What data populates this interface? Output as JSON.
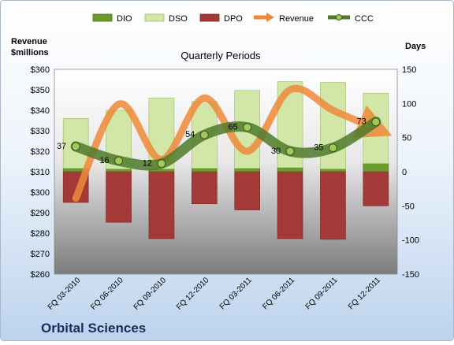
{
  "company": "Orbital Sciences",
  "chart_data": {
    "type": "bar",
    "title": "Quarterly Periods",
    "left_axis_label": [
      "Revenue",
      "$millions"
    ],
    "right_axis_label": "Days",
    "categories": [
      "FQ 03-2010",
      "FQ 06-2010",
      "FQ 09-2010",
      "FQ 12-2010",
      "FQ 03-2011",
      "FQ 06-2011",
      "FQ 09-2011",
      "FQ 12-2011"
    ],
    "left_axis": {
      "min": 260,
      "max": 360,
      "step": 10,
      "format": "$"
    },
    "right_axis": {
      "min": -150,
      "max": 150,
      "step": 50
    },
    "series": [
      {
        "name": "DIO",
        "axis": "right",
        "kind": "bar",
        "color": "#6a9a2a",
        "values": [
          5,
          4,
          4,
          5,
          5,
          6,
          4,
          12
        ]
      },
      {
        "name": "DSO",
        "axis": "right",
        "kind": "bar",
        "color": "#d2e6a8",
        "values": [
          73,
          86,
          104,
          98,
          114,
          126,
          127,
          103
        ]
      },
      {
        "name": "DPO",
        "axis": "right",
        "kind": "bar",
        "color": "#a33a38",
        "values": [
          -45,
          -74,
          -98,
          -47,
          -56,
          -98,
          -99,
          -50
        ]
      },
      {
        "name": "Revenue",
        "axis": "left",
        "kind": "line",
        "color": "#ef8a3a",
        "values": [
          297,
          343,
          316,
          346,
          320,
          350,
          340,
          331
        ]
      },
      {
        "name": "CCC",
        "axis": "right",
        "kind": "line",
        "color": "#4f7a2a",
        "values": [
          37,
          16,
          12,
          54,
          65,
          30,
          35,
          73
        ]
      }
    ],
    "data_labels": [
      "37",
      "16",
      "12",
      "54",
      "65",
      "30",
      "35",
      "73"
    ]
  }
}
